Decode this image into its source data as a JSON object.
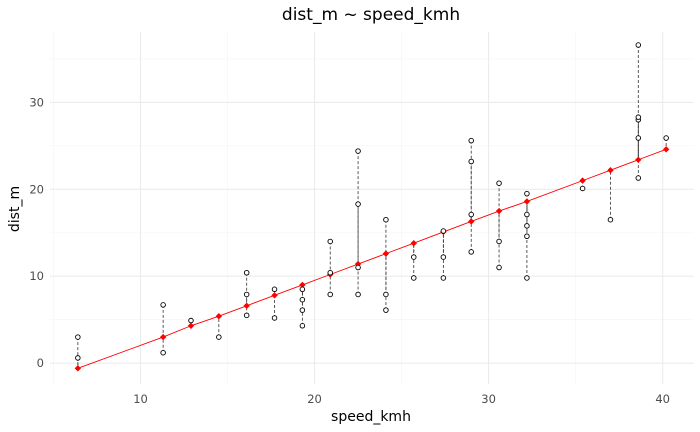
{
  "chart_data": {
    "type": "scatter",
    "title": "dist_m ~ speed_kmh",
    "xlabel": "speed_kmh",
    "ylabel": "dist_m",
    "xlim": [
      4.8,
      41.8
    ],
    "ylim": [
      -2.4,
      38.1
    ],
    "x_ticks": [
      10,
      20,
      30,
      40
    ],
    "x_tick_labels": [
      "10",
      "20",
      "30",
      "40"
    ],
    "y_ticks": [
      0,
      10,
      20,
      30
    ],
    "y_tick_labels": [
      "0",
      "10",
      "20",
      "30"
    ],
    "x_minor_ticks": [
      5,
      15,
      25,
      35
    ],
    "y_minor_ticks": [
      5,
      15,
      25,
      35
    ],
    "grid": true,
    "legend": "none",
    "colors": {
      "observed": "#000000",
      "fitted": "#ff0000",
      "residual": "#333333"
    },
    "fit": {
      "intercept": -5.36,
      "slope": 0.746
    },
    "series": [
      {
        "name": "observed",
        "style": "open-circle",
        "x": [
          6.4,
          6.4,
          11.3,
          11.3,
          12.9,
          14.5,
          16.1,
          16.1,
          16.1,
          17.7,
          17.7,
          19.3,
          19.3,
          19.3,
          19.3,
          20.9,
          20.9,
          20.9,
          22.5,
          22.5,
          22.5,
          22.5,
          24.1,
          24.1,
          24.1,
          25.7,
          25.7,
          27.4,
          27.4,
          27.4,
          29.0,
          29.0,
          29.0,
          29.0,
          30.6,
          30.6,
          30.6,
          32.2,
          32.2,
          32.2,
          32.2,
          32.2,
          35.4,
          37.0,
          38.6,
          38.6,
          38.6,
          38.6,
          38.6,
          40.2
        ],
        "y": [
          0.6,
          3.0,
          1.2,
          6.7,
          4.9,
          3.0,
          5.5,
          7.9,
          10.4,
          5.2,
          8.5,
          4.3,
          6.1,
          7.3,
          8.5,
          7.9,
          10.4,
          14.0,
          7.9,
          11.0,
          18.3,
          24.4,
          6.1,
          7.9,
          16.5,
          9.8,
          12.2,
          9.8,
          12.2,
          15.2,
          12.8,
          17.1,
          23.2,
          25.6,
          11.0,
          14.0,
          20.7,
          9.8,
          14.6,
          15.8,
          17.1,
          19.5,
          20.1,
          16.5,
          21.3,
          28.0,
          28.3,
          36.6,
          25.9,
          25.9
        ]
      },
      {
        "name": "fitted",
        "style": "filled-diamond-line",
        "x": [
          6.4,
          11.3,
          12.9,
          14.5,
          16.1,
          17.7,
          19.3,
          20.9,
          22.5,
          24.1,
          25.7,
          27.4,
          29.0,
          30.6,
          32.2,
          35.4,
          37.0,
          38.6,
          40.2
        ],
        "y": [
          -0.6,
          3.0,
          4.3,
          5.4,
          6.6,
          7.8,
          9.0,
          10.2,
          11.4,
          12.6,
          13.8,
          15.1,
          16.3,
          17.5,
          18.6,
          21.0,
          22.2,
          23.4,
          24.6
        ]
      }
    ]
  }
}
